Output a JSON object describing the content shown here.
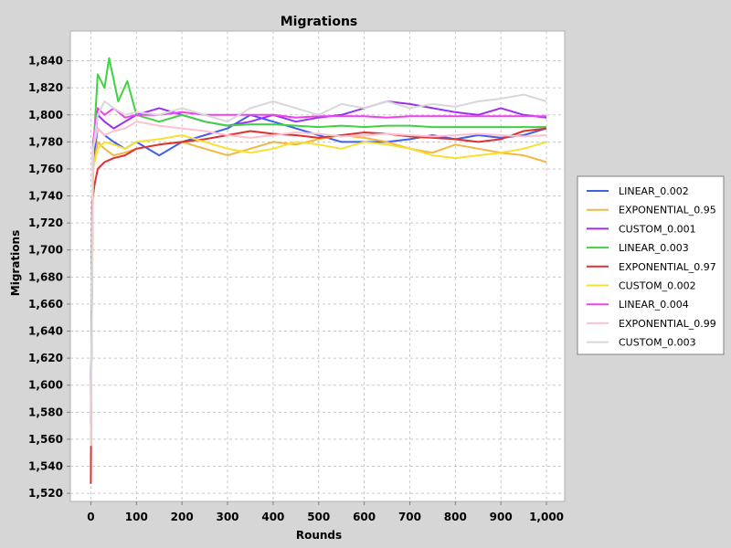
{
  "chart_data": {
    "type": "line",
    "title": "Migrations",
    "xlabel": "Rounds",
    "ylabel": "Migrations",
    "xlim": [
      -45,
      1040
    ],
    "ylim": [
      1514,
      1862
    ],
    "xticks": [
      0,
      100,
      200,
      300,
      400,
      500,
      600,
      700,
      800,
      900,
      1000
    ],
    "xtick_labels": [
      "0",
      "100",
      "200",
      "300",
      "400",
      "500",
      "600",
      "700",
      "800",
      "900",
      "1,000"
    ],
    "yticks": [
      1520,
      1540,
      1560,
      1580,
      1600,
      1620,
      1640,
      1660,
      1680,
      1700,
      1720,
      1740,
      1760,
      1780,
      1800,
      1820,
      1840
    ],
    "ytick_labels": [
      "1,520",
      "1,540",
      "1,560",
      "1,580",
      "1,600",
      "1,620",
      "1,640",
      "1,660",
      "1,680",
      "1,700",
      "1,720",
      "1,740",
      "1,760",
      "1,780",
      "1,800",
      "1,820",
      "1,840"
    ],
    "grid": true,
    "legend_position": "right",
    "series": [
      {
        "name": "LINEAR_0.002",
        "color": "#3f5fef",
        "x": [
          0,
          5,
          15,
          30,
          50,
          75,
          100,
          150,
          200,
          250,
          300,
          350,
          400,
          450,
          500,
          550,
          600,
          650,
          700,
          750,
          800,
          850,
          900,
          950,
          1000
        ],
        "y": [
          1575,
          1765,
          1790,
          1785,
          1780,
          1775,
          1780,
          1770,
          1780,
          1785,
          1790,
          1800,
          1795,
          1790,
          1785,
          1780,
          1780,
          1780,
          1782,
          1785,
          1782,
          1785,
          1783,
          1785,
          1790
        ]
      },
      {
        "name": "EXPONENTIAL_0.95",
        "color": "#f0b840",
        "x": [
          0,
          5,
          15,
          30,
          50,
          75,
          100,
          150,
          200,
          250,
          300,
          350,
          400,
          450,
          500,
          550,
          600,
          650,
          700,
          750,
          800,
          850,
          900,
          950,
          1000
        ],
        "y": [
          1560,
          1760,
          1780,
          1775,
          1770,
          1772,
          1775,
          1778,
          1780,
          1775,
          1770,
          1775,
          1780,
          1778,
          1782,
          1785,
          1783,
          1780,
          1775,
          1772,
          1778,
          1775,
          1772,
          1770,
          1765
        ]
      },
      {
        "name": "CUSTOM_0.001",
        "color": "#9b30f5",
        "x": [
          0,
          5,
          15,
          30,
          50,
          75,
          100,
          150,
          200,
          250,
          300,
          350,
          400,
          450,
          500,
          550,
          600,
          650,
          700,
          750,
          800,
          850,
          900,
          950,
          1000
        ],
        "y": [
          1570,
          1770,
          1800,
          1795,
          1790,
          1795,
          1800,
          1805,
          1800,
          1795,
          1792,
          1795,
          1800,
          1795,
          1798,
          1800,
          1805,
          1810,
          1808,
          1805,
          1802,
          1800,
          1805,
          1800,
          1798
        ]
      },
      {
        "name": "LINEAR_0.003",
        "color": "#40d240",
        "x": [
          0,
          5,
          15,
          30,
          40,
          60,
          80,
          100,
          150,
          200,
          250,
          300,
          350,
          400,
          450,
          500,
          550,
          600,
          650,
          700,
          750,
          800,
          850,
          900,
          950,
          1000
        ],
        "y": [
          1580,
          1770,
          1830,
          1820,
          1842,
          1810,
          1825,
          1800,
          1795,
          1800,
          1795,
          1792,
          1793,
          1793,
          1792,
          1791,
          1792,
          1791,
          1792,
          1792,
          1791,
          1791,
          1791,
          1791,
          1791,
          1791
        ]
      },
      {
        "name": "EXPONENTIAL_0.97",
        "color": "#e03030",
        "x": [
          0,
          3,
          8,
          15,
          30,
          50,
          75,
          100,
          150,
          200,
          250,
          300,
          350,
          400,
          450,
          500,
          550,
          600,
          650,
          700,
          750,
          800,
          850,
          900,
          950,
          1000
        ],
        "y": [
          1527,
          1735,
          1748,
          1760,
          1765,
          1768,
          1770,
          1775,
          1778,
          1780,
          1782,
          1785,
          1788,
          1786,
          1785,
          1783,
          1785,
          1787,
          1786,
          1784,
          1783,
          1782,
          1780,
          1782,
          1788,
          1790
        ]
      },
      {
        "name": "CUSTOM_0.002",
        "color": "#f8e030",
        "x": [
          0,
          5,
          15,
          30,
          50,
          75,
          100,
          150,
          200,
          250,
          300,
          350,
          400,
          450,
          500,
          550,
          600,
          650,
          700,
          750,
          800,
          850,
          900,
          950,
          1000
        ],
        "y": [
          1565,
          1760,
          1775,
          1780,
          1778,
          1775,
          1780,
          1782,
          1785,
          1780,
          1775,
          1772,
          1775,
          1780,
          1778,
          1775,
          1780,
          1778,
          1775,
          1770,
          1768,
          1770,
          1772,
          1775,
          1780
        ]
      },
      {
        "name": "LINEAR_0.004",
        "color": "#f040f0",
        "x": [
          0,
          5,
          15,
          30,
          50,
          75,
          100,
          150,
          200,
          250,
          300,
          350,
          400,
          450,
          500,
          550,
          600,
          650,
          700,
          750,
          800,
          850,
          900,
          950,
          1000
        ],
        "y": [
          1572,
          1780,
          1805,
          1800,
          1805,
          1798,
          1800,
          1800,
          1802,
          1800,
          1800,
          1800,
          1800,
          1798,
          1799,
          1799,
          1799,
          1798,
          1799,
          1799,
          1799,
          1799,
          1799,
          1799,
          1799
        ]
      },
      {
        "name": "EXPONENTIAL_0.99",
        "color": "#ffc0d0",
        "x": [
          0,
          5,
          15,
          30,
          50,
          75,
          100,
          150,
          200,
          250,
          300,
          350,
          400,
          450,
          500,
          550,
          600,
          650,
          700,
          750,
          800,
          850,
          900,
          950,
          1000
        ],
        "y": [
          1560,
          1775,
          1790,
          1785,
          1788,
          1790,
          1795,
          1792,
          1790,
          1788,
          1785,
          1783,
          1785,
          1787,
          1786,
          1784,
          1785,
          1786,
          1785,
          1784,
          1785,
          1786,
          1785,
          1784,
          1785
        ]
      },
      {
        "name": "CUSTOM_0.003",
        "color": "#d8d8d8",
        "x": [
          0,
          5,
          15,
          30,
          50,
          75,
          100,
          150,
          200,
          250,
          300,
          350,
          400,
          450,
          500,
          550,
          600,
          650,
          700,
          750,
          800,
          850,
          900,
          950,
          1000
        ],
        "y": [
          1555,
          1775,
          1800,
          1810,
          1805,
          1800,
          1802,
          1800,
          1805,
          1800,
          1795,
          1805,
          1810,
          1805,
          1800,
          1808,
          1805,
          1810,
          1805,
          1808,
          1806,
          1810,
          1812,
          1815,
          1810
        ]
      }
    ]
  }
}
